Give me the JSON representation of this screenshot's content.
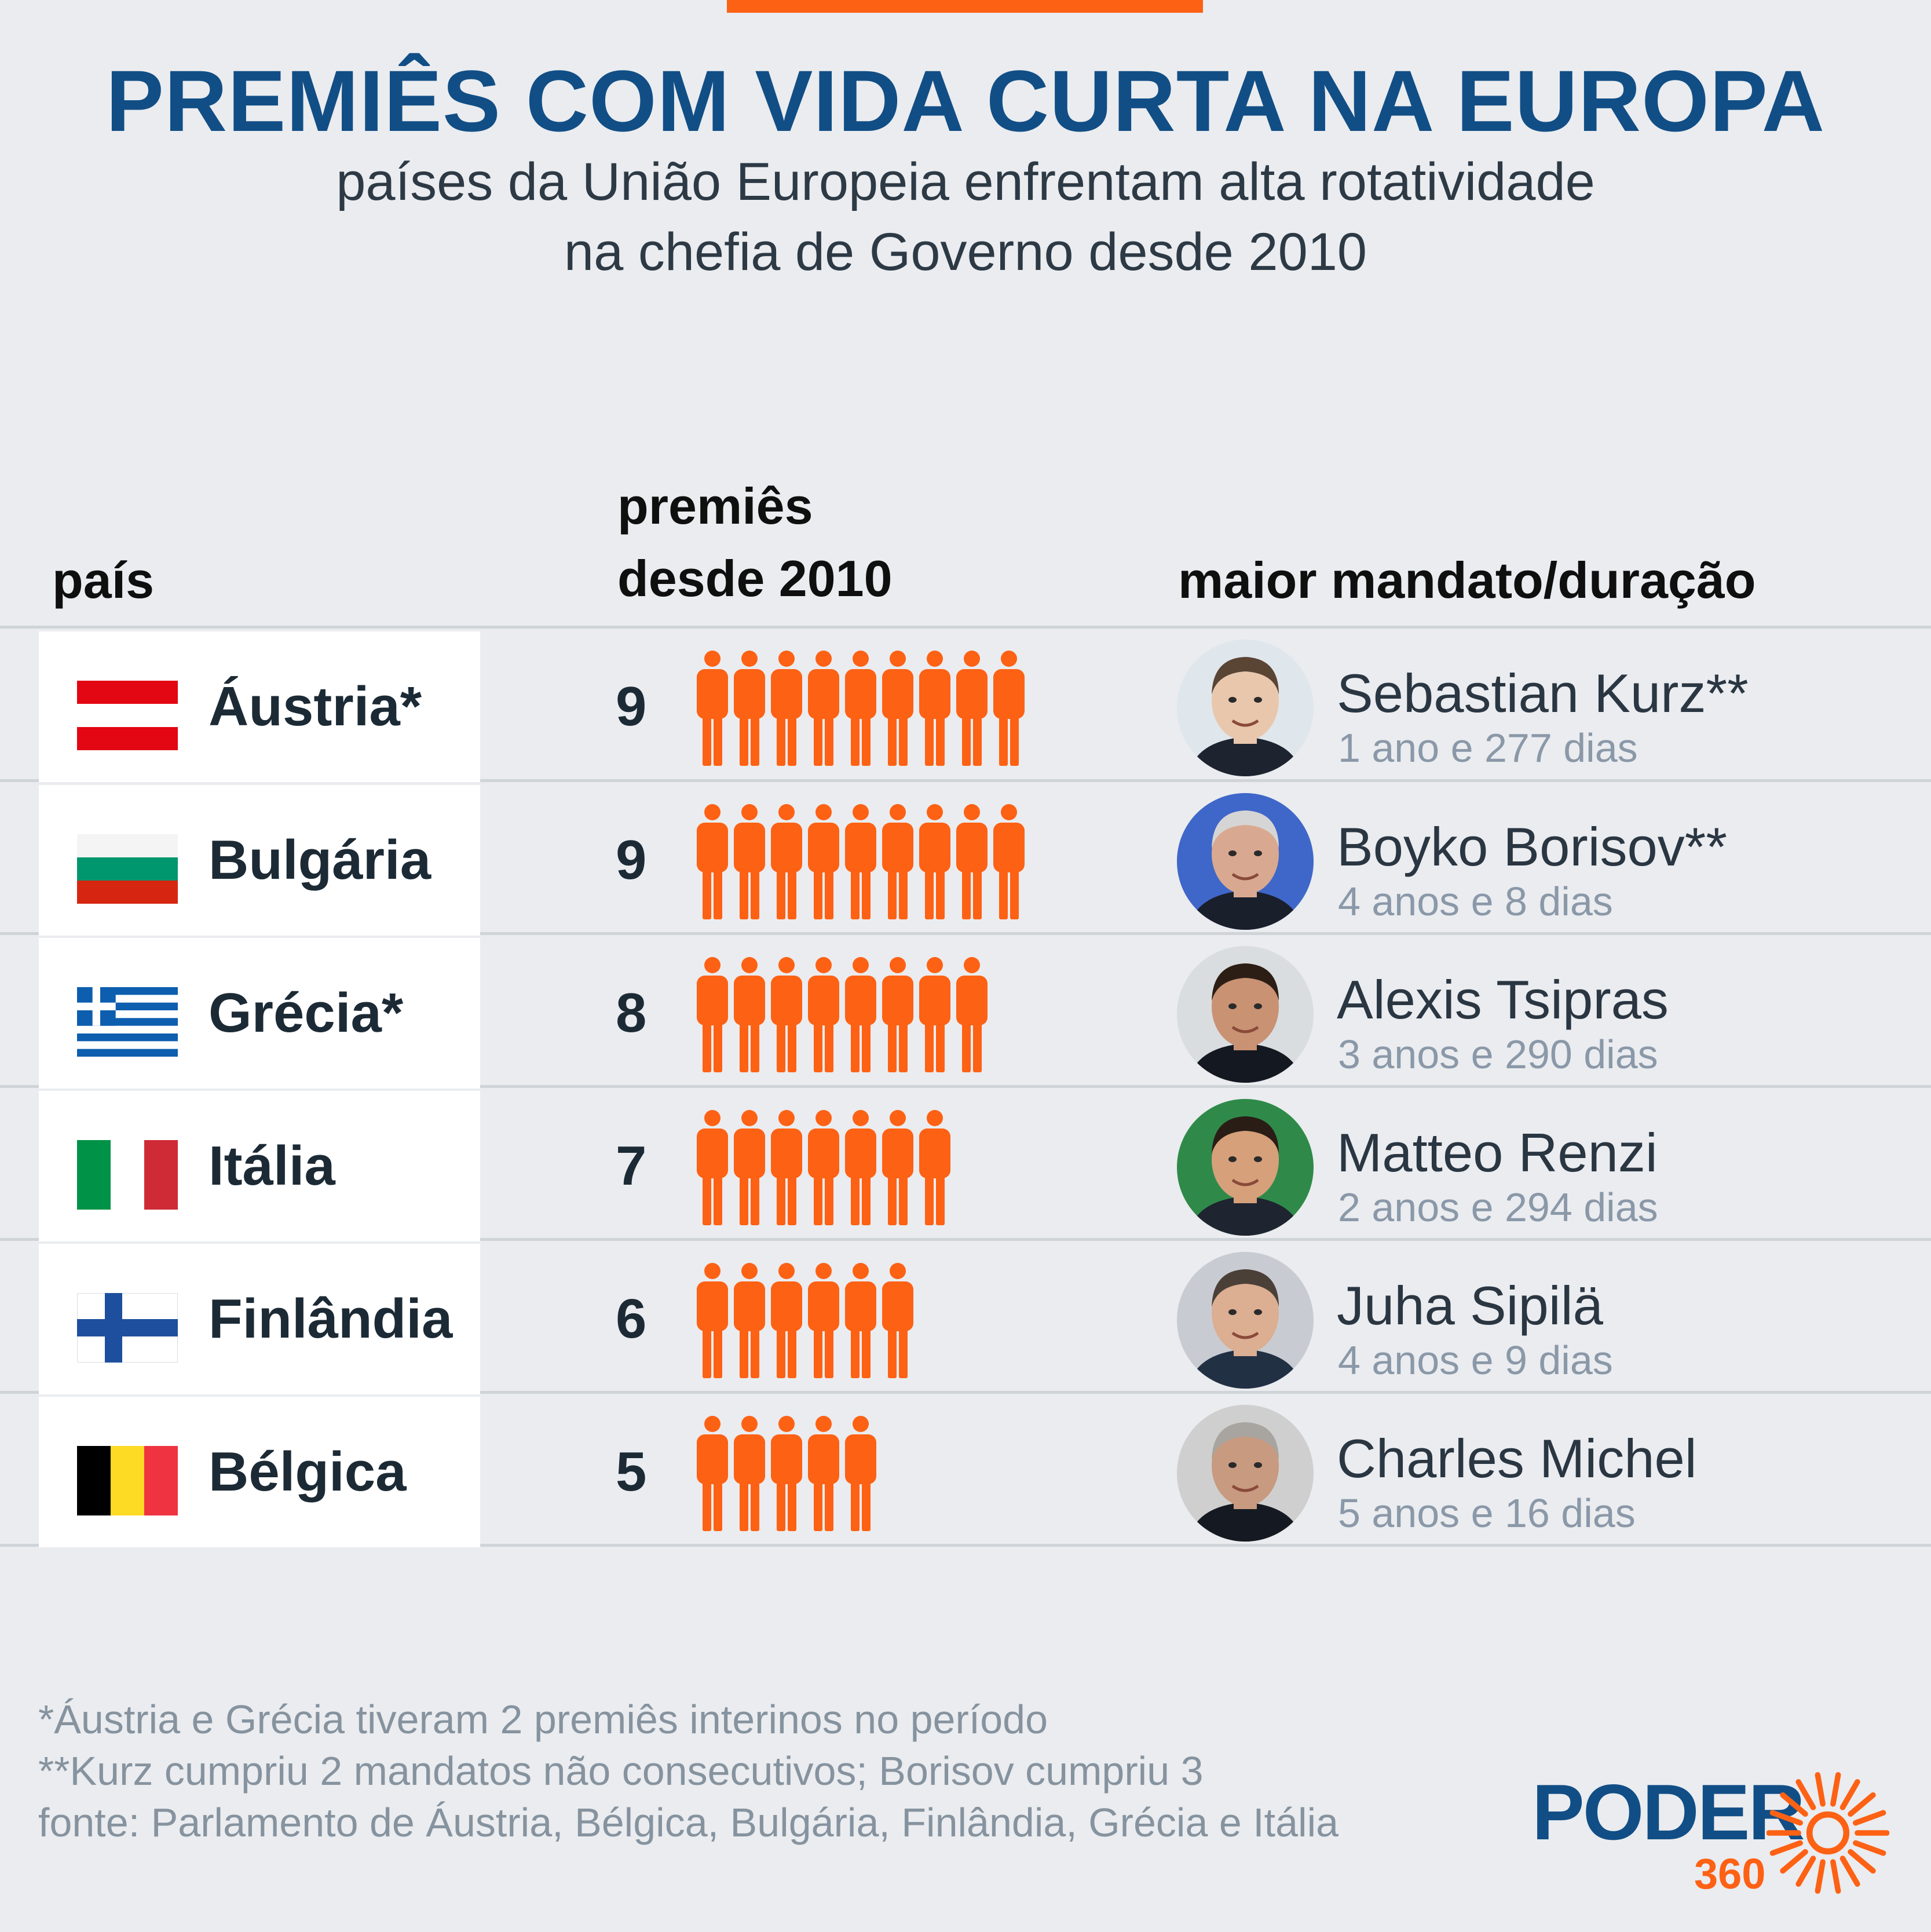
{
  "title": "PREMIÊS COM VIDA CURTA NA EUROPA",
  "subtitle_line1": "países da União Europeia enfrentam alta rotatividade",
  "subtitle_line2": "na chefia de Governo desde 2010",
  "headers": {
    "country": "país",
    "premiers_line1": "premiês",
    "premiers_line2": "desde 2010",
    "leader": "maior mandato/duração"
  },
  "colors": {
    "accent": "#fd6114",
    "title": "#124e86",
    "text": "#1c2a35",
    "muted": "#8a98a8"
  },
  "rows": [
    {
      "country": "Áustria*",
      "flag": "austria-flag",
      "count": "9",
      "leader": "Sebastian Kurz**",
      "duration": "1 ano e 277 dias"
    },
    {
      "country": "Bulgária",
      "flag": "bulgaria-flag",
      "count": "9",
      "leader": "Boyko Borisov**",
      "duration": "4 anos e 8 dias"
    },
    {
      "country": "Grécia*",
      "flag": "greece-flag",
      "count": "8",
      "leader": "Alexis Tsipras",
      "duration": "3 anos e 290 dias"
    },
    {
      "country": "Itália",
      "flag": "italy-flag",
      "count": "7",
      "leader": "Matteo Renzi",
      "duration": "2 anos e 294 dias"
    },
    {
      "country": "Finlândia",
      "flag": "finland-flag",
      "count": "6",
      "leader": "Juha Sipilä",
      "duration": "4 anos e 9 dias"
    },
    {
      "country": "Bélgica",
      "flag": "belgium-flag",
      "count": "5",
      "leader": "Charles Michel",
      "duration": "5 anos e 16 dias"
    }
  ],
  "chart_data": {
    "type": "table",
    "categories": [
      "Áustria*",
      "Bulgária",
      "Grécia*",
      "Itália",
      "Finlândia",
      "Bélgica"
    ],
    "values": [
      9,
      9,
      8,
      7,
      6,
      5
    ],
    "series": [
      {
        "values": [
          9,
          9,
          8,
          7,
          6,
          5
        ]
      }
    ],
    "longest_term_leader": [
      "Sebastian Kurz**",
      "Boyko Borisov**",
      "Alexis Tsipras",
      "Matteo Renzi",
      "Juha Sipilä",
      "Charles Michel"
    ],
    "longest_term_duration": [
      "1 ano e 277 dias",
      "4 anos e 8 dias",
      "3 anos e 290 dias",
      "2 anos e 294 dias",
      "4 anos e 9 dias",
      "5 anos e 16 dias"
    ]
  },
  "footnotes": [
    "*Áustria e Grécia tiveram 2 premiês interinos no período",
    "**Kurz cumpriu 2 mandatos não consecutivos; Borisov cumpriu 3",
    "fonte: Parlamento de Áustria, Bélgica, Bulgária, Finlândia, Grécia e Itália"
  ],
  "logo": {
    "word": "PODER",
    "number": "360"
  }
}
